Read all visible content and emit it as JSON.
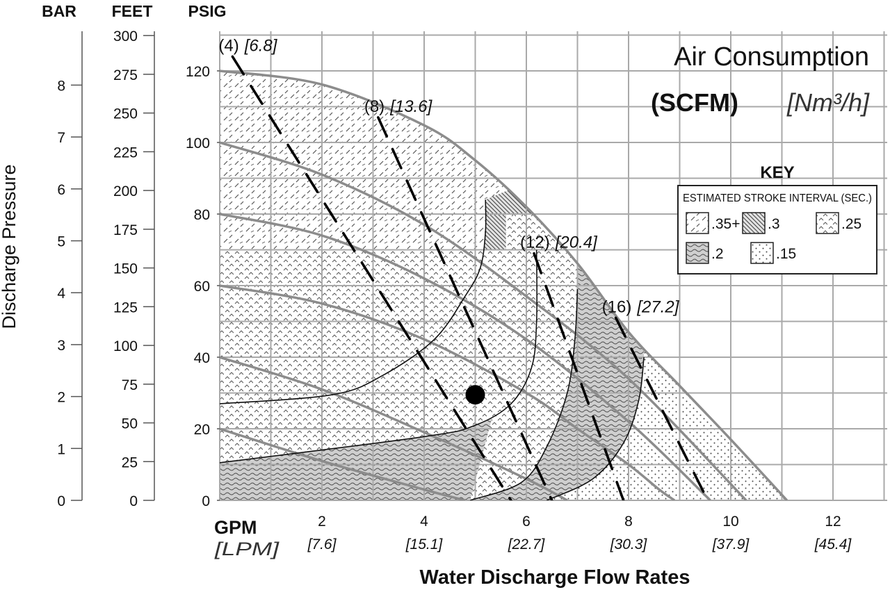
{
  "chart_data": {
    "type": "line",
    "title": "Air Consumption",
    "title_units": {
      "scfm": "(SCFM)",
      "metric": "[Nm³/h]"
    },
    "xlabel": "Water Discharge Flow Rates",
    "x_unit_primary": "GPM",
    "x_unit_secondary": "[LPM]",
    "ylabel": "Discharge Pressure",
    "xlim": [
      0,
      13
    ],
    "ylim": [
      0,
      130
    ],
    "grid": true,
    "x_ticks": [
      {
        "gpm": 2,
        "gpm_label": "2",
        "lpm_label": "[7.6]"
      },
      {
        "gpm": 4,
        "gpm_label": "4",
        "lpm_label": "[15.1]"
      },
      {
        "gpm": 6,
        "gpm_label": "6",
        "lpm_label": "[22.7]"
      },
      {
        "gpm": 8,
        "gpm_label": "8",
        "lpm_label": "[30.3]"
      },
      {
        "gpm": 10,
        "gpm_label": "10",
        "lpm_label": "[37.9]"
      },
      {
        "gpm": 12,
        "gpm_label": "12",
        "lpm_label": "[45.4]"
      }
    ],
    "y_axes": {
      "psig": {
        "heading": "PSIG",
        "ticks": [
          0,
          20,
          40,
          60,
          80,
          100,
          120
        ]
      },
      "feet": {
        "heading": "FEET",
        "ticks": [
          0,
          25,
          50,
          75,
          100,
          125,
          150,
          175,
          200,
          225,
          250,
          275,
          300
        ]
      },
      "bar": {
        "heading": "BAR",
        "ticks": [
          0,
          1,
          2,
          3,
          4,
          5,
          6,
          7,
          8
        ]
      }
    },
    "performance_curves": [
      {
        "points": [
          [
            0,
            120
          ],
          [
            2,
            116.2
          ],
          [
            4,
            104.8
          ],
          [
            5,
            95.0
          ],
          [
            6,
            82.0
          ],
          [
            7,
            66.2
          ],
          [
            8,
            47.0
          ],
          [
            9,
            32.0
          ],
          [
            10,
            17.0
          ],
          [
            11.1,
            0
          ]
        ]
      },
      {
        "points": [
          [
            0,
            100
          ],
          [
            2,
            91.0
          ],
          [
            4,
            77.0
          ],
          [
            6,
            57.0
          ],
          [
            8,
            34.0
          ],
          [
            10.3,
            0
          ]
        ]
      },
      {
        "points": [
          [
            0,
            80
          ],
          [
            2,
            74.0
          ],
          [
            4,
            62.0
          ],
          [
            6,
            45.0
          ],
          [
            8,
            22.0
          ],
          [
            9.6,
            0
          ]
        ]
      },
      {
        "points": [
          [
            0,
            60
          ],
          [
            2,
            55.0
          ],
          [
            4,
            45.0
          ],
          [
            6,
            30.0
          ],
          [
            7,
            20.0
          ],
          [
            8,
            10.0
          ],
          [
            8.6,
            3.0
          ],
          [
            8.9,
            0
          ]
        ]
      },
      {
        "points": [
          [
            0,
            40
          ],
          [
            2,
            31.0
          ],
          [
            4,
            19.0
          ],
          [
            6,
            6.0
          ],
          [
            6.8,
            0
          ]
        ]
      },
      {
        "points": [
          [
            0,
            20
          ],
          [
            2,
            11.0
          ],
          [
            4,
            3.0
          ],
          [
            4.8,
            0
          ]
        ]
      }
    ],
    "air_consumption_lines": [
      {
        "label": "(4)",
        "metric_label": "[6.8]",
        "points": [
          [
            0.25,
            124
          ],
          [
            5.7,
            0
          ]
        ]
      },
      {
        "label": "(8)",
        "metric_label": "[13.6]",
        "points": [
          [
            3.1,
            107
          ],
          [
            6.5,
            0
          ]
        ]
      },
      {
        "label": "(12)",
        "metric_label": "[20.4]",
        "points": [
          [
            6.15,
            69
          ],
          [
            7.9,
            0
          ]
        ]
      },
      {
        "label": "(16)",
        "metric_label": "[27.2]",
        "points": [
          [
            7.75,
            51
          ],
          [
            9.55,
            0
          ]
        ]
      }
    ],
    "zone_boundaries": [
      {
        "points": [
          [
            0,
            27
          ],
          [
            2.2,
            29.5
          ],
          [
            3.2,
            35
          ],
          [
            4.2,
            45
          ],
          [
            4.8,
            57
          ],
          [
            5.1,
            65
          ],
          [
            5.2,
            75
          ],
          [
            5.2,
            84
          ]
        ]
      },
      {
        "points": [
          [
            0,
            10.5
          ],
          [
            4,
            17.8
          ],
          [
            5,
            21.0
          ],
          [
            5.7,
            27
          ],
          [
            6.1,
            37
          ],
          [
            6.2,
            50
          ],
          [
            6.2,
            70
          ]
        ]
      },
      {
        "points": [
          [
            4.9,
            0
          ],
          [
            5.9,
            5
          ],
          [
            6.4,
            15
          ],
          [
            6.8,
            30
          ],
          [
            6.95,
            45
          ],
          [
            7,
            59
          ]
        ]
      },
      {
        "points": [
          [
            6.4,
            0
          ],
          [
            7.3,
            6
          ],
          [
            7.9,
            16
          ],
          [
            8.2,
            28
          ],
          [
            8.3,
            40
          ]
        ]
      }
    ],
    "operating_point": {
      "gpm": 5,
      "psig": 29.5
    },
    "key": {
      "title": "KEY",
      "subtitle": "ESTIMATED STROKE INTERVAL (SEC.)",
      "entries": [
        {
          "label": ".35+",
          "pattern": "dashes"
        },
        {
          "label": ".3",
          "pattern": "diagonal-hatch"
        },
        {
          "label": ".25",
          "pattern": "chevrons"
        },
        {
          "label": ".2",
          "pattern": "waves"
        },
        {
          "label": ".15",
          "pattern": "dots"
        }
      ]
    }
  }
}
